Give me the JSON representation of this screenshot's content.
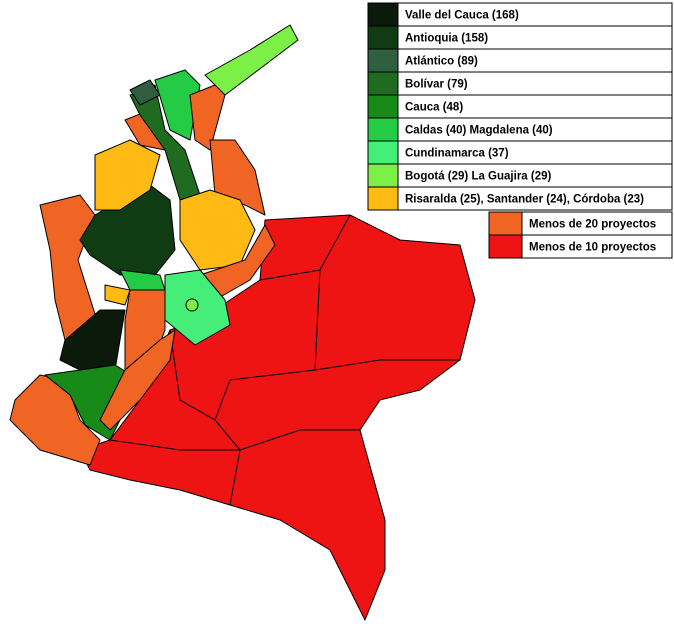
{
  "legend": {
    "items": [
      {
        "label": "Valle del Cauca (168)",
        "color": "#0b1a0b"
      },
      {
        "label": "Antioquia (158)",
        "color": "#0f3c12"
      },
      {
        "label": "Atlántico (89)",
        "color": "#2f5f40"
      },
      {
        "label": "Bolívar (79)",
        "color": "#1f6b1f"
      },
      {
        "label": "Cauca (48)",
        "color": "#178a17"
      },
      {
        "label": "Caldas (40) Magdalena (40)",
        "color": "#24cc46"
      },
      {
        "label": "Cundinamarca (37)",
        "color": "#45ee78"
      },
      {
        "label": "Bogotá (29) La Guajira (29)",
        "color": "#7cf046"
      },
      {
        "label": "Risaralda (25), Santander (24), Córdoba (23)",
        "color": "#ffba14"
      },
      {
        "label": "Menos de 20 proyectos",
        "color": "#f06424"
      },
      {
        "label": "Menos de 10 proyectos",
        "color": "#ef1414"
      }
    ]
  }
}
